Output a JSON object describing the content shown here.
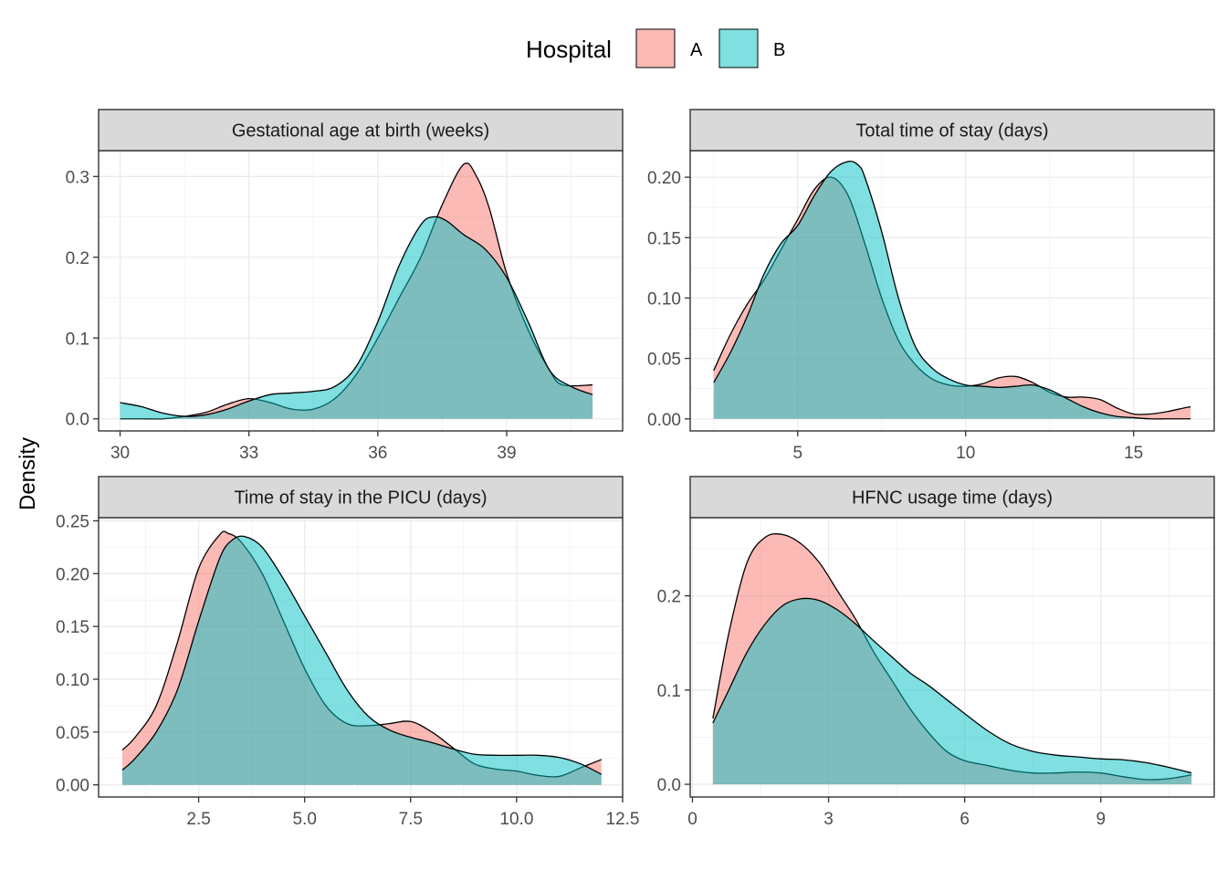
{
  "legend": {
    "title": "Hospital",
    "items": [
      {
        "label": "A",
        "color": "#F8766D"
      },
      {
        "label": "B",
        "color": "#00BFC4"
      }
    ]
  },
  "ylabel": "Density",
  "chart_data": [
    {
      "type": "area",
      "title": "Gestational age at birth (weeks)",
      "xlim": [
        29.5,
        41.7
      ],
      "ylim": [
        -0.015,
        0.332
      ],
      "x_ticks": [
        30,
        33,
        36,
        39
      ],
      "x_ticklabels": [
        "30",
        "33",
        "36",
        "39"
      ],
      "y_ticks": [
        0,
        0.1,
        0.2,
        0.3
      ],
      "y_ticklabels": [
        "0.0",
        "0.1",
        "0.2",
        "0.3"
      ],
      "series": [
        {
          "name": "A",
          "x": [
            30,
            30.5,
            31,
            31.5,
            32,
            32.5,
            33,
            33.5,
            34,
            34.5,
            35,
            35.5,
            36,
            36.5,
            37,
            37.5,
            38,
            38.3,
            38.6,
            39,
            39.5,
            40,
            40.3,
            41
          ],
          "y": [
            0.0,
            0.0,
            0.0,
            0.003,
            0.008,
            0.018,
            0.025,
            0.02,
            0.012,
            0.012,
            0.025,
            0.055,
            0.1,
            0.15,
            0.2,
            0.265,
            0.315,
            0.3,
            0.26,
            0.18,
            0.11,
            0.06,
            0.042,
            0.042
          ]
        },
        {
          "name": "B",
          "x": [
            30,
            30.5,
            31,
            31.5,
            32,
            32.5,
            33,
            33.5,
            34,
            34.5,
            35,
            35.5,
            36,
            36.5,
            37,
            37.3,
            37.6,
            38,
            38.5,
            39,
            39.5,
            40,
            40.5,
            41
          ],
          "y": [
            0.02,
            0.015,
            0.007,
            0.003,
            0.005,
            0.012,
            0.022,
            0.03,
            0.032,
            0.034,
            0.04,
            0.065,
            0.12,
            0.19,
            0.24,
            0.25,
            0.245,
            0.228,
            0.21,
            0.175,
            0.12,
            0.06,
            0.04,
            0.03
          ]
        }
      ]
    },
    {
      "type": "area",
      "title": "Total time of stay (days)",
      "xlim": [
        1.8,
        17.4
      ],
      "ylim": [
        -0.01,
        0.222
      ],
      "x_ticks": [
        5,
        10,
        15
      ],
      "x_ticklabels": [
        "5",
        "10",
        "15"
      ],
      "y_ticks": [
        0,
        0.05,
        0.1,
        0.15,
        0.2
      ],
      "y_ticklabels": [
        "0.00",
        "0.05",
        "0.10",
        "0.15",
        "0.20"
      ],
      "series": [
        {
          "name": "A",
          "x": [
            2.5,
            3,
            3.5,
            4,
            4.5,
            5,
            5.5,
            6,
            6.5,
            7,
            7.5,
            8,
            8.5,
            9,
            9.5,
            10,
            10.5,
            11,
            11.5,
            12,
            12.5,
            13,
            13.5,
            14,
            14.5,
            15,
            15.5,
            16,
            16.5,
            16.7
          ],
          "y": [
            0.04,
            0.07,
            0.095,
            0.115,
            0.14,
            0.165,
            0.19,
            0.2,
            0.185,
            0.145,
            0.1,
            0.065,
            0.045,
            0.033,
            0.028,
            0.027,
            0.029,
            0.034,
            0.035,
            0.03,
            0.022,
            0.018,
            0.018,
            0.016,
            0.009,
            0.004,
            0.004,
            0.006,
            0.009,
            0.01
          ]
        },
        {
          "name": "B",
          "x": [
            2.5,
            3,
            3.5,
            4,
            4.5,
            5,
            5.5,
            6,
            6.5,
            6.8,
            7,
            7.5,
            8,
            8.5,
            9,
            9.5,
            10,
            10.5,
            11,
            11.5,
            12,
            12.5,
            13,
            13.5,
            14,
            14.5,
            15,
            15.5,
            16,
            16.5,
            16.7
          ],
          "y": [
            0.03,
            0.055,
            0.085,
            0.12,
            0.145,
            0.16,
            0.185,
            0.205,
            0.213,
            0.21,
            0.2,
            0.155,
            0.1,
            0.06,
            0.042,
            0.033,
            0.028,
            0.027,
            0.026,
            0.027,
            0.028,
            0.024,
            0.017,
            0.01,
            0.005,
            0.002,
            0.001,
            0.0,
            0.0,
            0.0,
            0.0
          ]
        }
      ]
    },
    {
      "type": "area",
      "title": "Time of stay in the PICU (days)",
      "xlim": [
        0.14,
        12.5
      ],
      "ylim": [
        -0.0115,
        0.253
      ],
      "x_ticks": [
        2.5,
        5.0,
        7.5,
        10.0,
        12.5
      ],
      "x_ticklabels": [
        "2.5",
        "5.0",
        "7.5",
        "10.0",
        "12.5"
      ],
      "y_ticks": [
        0,
        0.05,
        0.1,
        0.15,
        0.2,
        0.25
      ],
      "y_ticklabels": [
        "0.00",
        "0.05",
        "0.10",
        "0.15",
        "0.20",
        "0.25"
      ],
      "series": [
        {
          "name": "A",
          "x": [
            0.7,
            1,
            1.5,
            2,
            2.5,
            3,
            3.2,
            3.5,
            4,
            4.5,
            5,
            5.5,
            6,
            6.5,
            7,
            7.5,
            8,
            8.5,
            9,
            9.5,
            10,
            10.5,
            11,
            11.5,
            12
          ],
          "y": [
            0.033,
            0.045,
            0.075,
            0.135,
            0.205,
            0.237,
            0.238,
            0.23,
            0.2,
            0.155,
            0.11,
            0.075,
            0.058,
            0.056,
            0.058,
            0.06,
            0.05,
            0.035,
            0.02,
            0.015,
            0.013,
            0.009,
            0.008,
            0.016,
            0.024
          ]
        },
        {
          "name": "B",
          "x": [
            0.7,
            1,
            1.5,
            2,
            2.5,
            3,
            3.3,
            3.6,
            4,
            4.5,
            5,
            5.5,
            6,
            6.5,
            7,
            7.5,
            8,
            8.5,
            9,
            9.5,
            10,
            10.5,
            11,
            11.5,
            12
          ],
          "y": [
            0.014,
            0.025,
            0.05,
            0.09,
            0.155,
            0.215,
            0.232,
            0.235,
            0.225,
            0.195,
            0.16,
            0.125,
            0.09,
            0.065,
            0.052,
            0.045,
            0.04,
            0.034,
            0.029,
            0.028,
            0.028,
            0.028,
            0.026,
            0.02,
            0.01
          ]
        }
      ]
    },
    {
      "type": "area",
      "title": "HFNC usage time (days)",
      "xlim": [
        -0.05,
        11.5
      ],
      "ylim": [
        -0.0135,
        0.283
      ],
      "x_ticks": [
        0,
        3,
        6,
        9
      ],
      "x_ticklabels": [
        "0",
        "3",
        "6",
        "9"
      ],
      "y_ticks": [
        0,
        0.1,
        0.2
      ],
      "y_ticklabels": [
        "0.0",
        "0.1",
        "0.2"
      ],
      "series": [
        {
          "name": "A",
          "x": [
            0.45,
            0.8,
            1.2,
            1.6,
            2,
            2.4,
            2.8,
            3.2,
            3.6,
            4,
            4.4,
            4.8,
            5.2,
            5.6,
            6,
            6.5,
            7,
            7.5,
            8,
            8.5,
            9,
            9.5,
            10,
            10.5,
            11
          ],
          "y": [
            0.07,
            0.16,
            0.235,
            0.262,
            0.265,
            0.255,
            0.235,
            0.205,
            0.175,
            0.14,
            0.11,
            0.08,
            0.055,
            0.035,
            0.025,
            0.02,
            0.015,
            0.012,
            0.012,
            0.013,
            0.012,
            0.008,
            0.005,
            0.006,
            0.01
          ]
        },
        {
          "name": "B",
          "x": [
            0.45,
            0.8,
            1.2,
            1.6,
            2,
            2.4,
            2.8,
            3.2,
            3.6,
            4,
            4.4,
            4.8,
            5.2,
            5.6,
            6,
            6.5,
            7,
            7.5,
            8,
            8.5,
            9,
            9.5,
            10,
            10.5,
            11
          ],
          "y": [
            0.065,
            0.1,
            0.14,
            0.17,
            0.19,
            0.197,
            0.195,
            0.185,
            0.17,
            0.152,
            0.135,
            0.118,
            0.105,
            0.09,
            0.075,
            0.057,
            0.043,
            0.035,
            0.031,
            0.029,
            0.027,
            0.026,
            0.023,
            0.018,
            0.012
          ]
        }
      ]
    }
  ]
}
